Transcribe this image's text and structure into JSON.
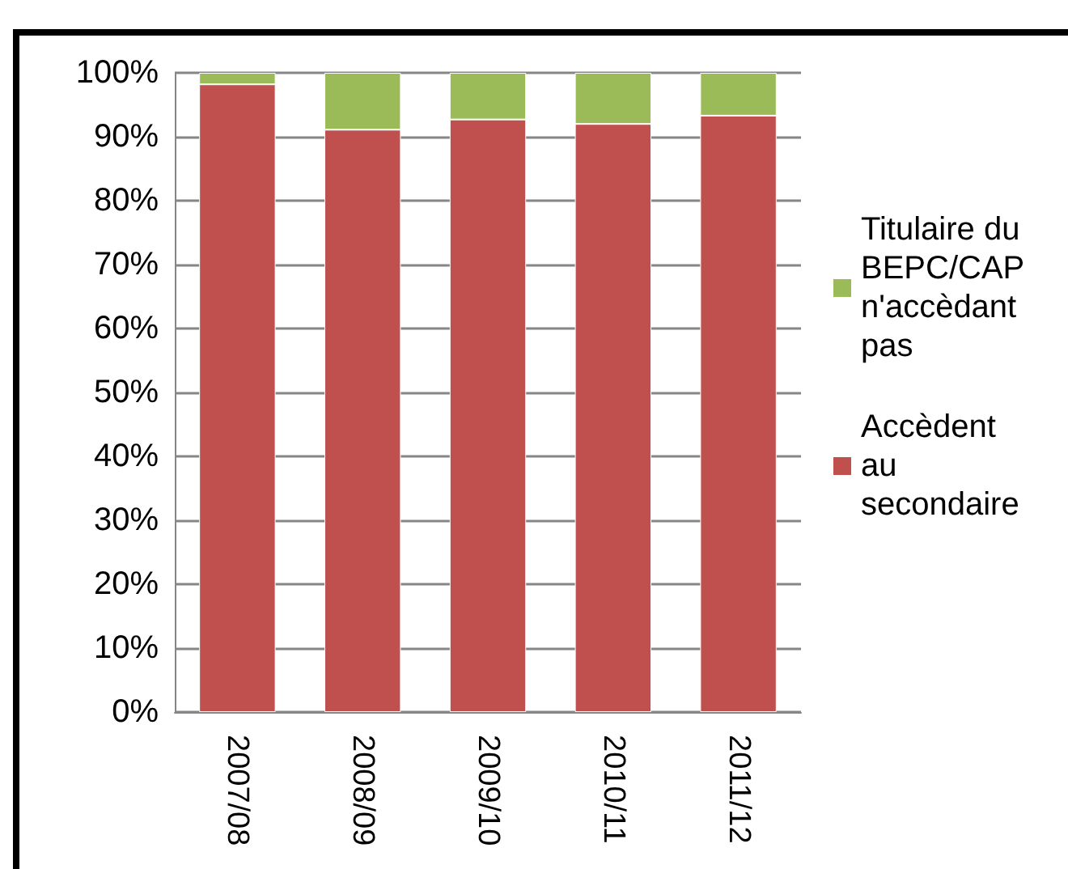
{
  "chart_data": {
    "type": "bar",
    "stacked": true,
    "categories": [
      "2007/08",
      "2008/09",
      "2009/10",
      "2010/11",
      "2011/12"
    ],
    "series": [
      {
        "name": "Accèdent au secondaire",
        "color": "#c0504d",
        "values": [
          98.2,
          91.1,
          92.7,
          92.0,
          93.3
        ]
      },
      {
        "name": "Titulaire du BEPC/CAP n'accèdant pas",
        "color": "#9bbb59",
        "values": [
          1.8,
          8.9,
          7.3,
          8.0,
          6.7
        ]
      }
    ],
    "ylim": [
      0,
      100
    ],
    "yticks": [
      {
        "value": 0,
        "label": "0%"
      },
      {
        "value": 10,
        "label": "10%"
      },
      {
        "value": 20,
        "label": "20%"
      },
      {
        "value": 30,
        "label": "30%"
      },
      {
        "value": 40,
        "label": "40%"
      },
      {
        "value": 50,
        "label": "50%"
      },
      {
        "value": 60,
        "label": "60%"
      },
      {
        "value": 70,
        "label": "70%"
      },
      {
        "value": 80,
        "label": "80%"
      },
      {
        "value": 90,
        "label": "90%"
      },
      {
        "value": 100,
        "label": "100%"
      }
    ],
    "grid": "y",
    "legend": "right"
  }
}
